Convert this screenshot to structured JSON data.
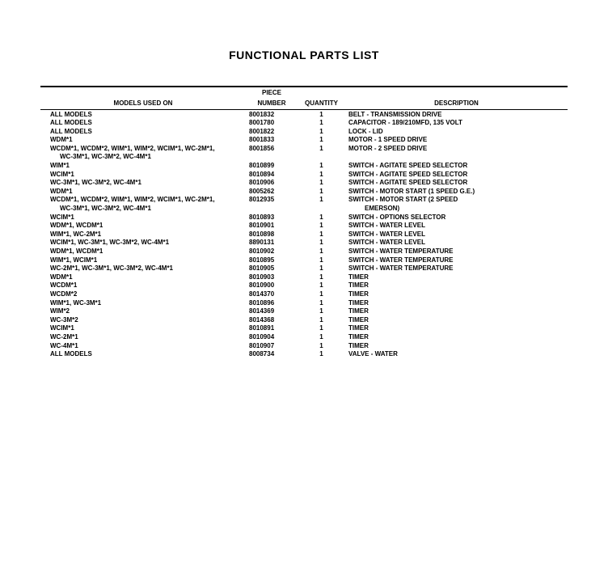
{
  "title": "FUNCTIONAL PARTS LIST",
  "columns": {
    "models": "MODELS USED ON",
    "piece_top": "PIECE",
    "piece_bot": "NUMBER",
    "qty": "QUANTITY",
    "desc": "DESCRIPTION"
  },
  "rows": [
    {
      "models": "ALL MODELS",
      "piece": "8001832",
      "qty": "1",
      "desc": "BELT - TRANSMISSION DRIVE"
    },
    {
      "models": "ALL MODELS",
      "piece": "8001780",
      "qty": "1",
      "desc": "CAPACITOR - 189/210MFD, 135 VOLT"
    },
    {
      "models": "ALL MODELS",
      "piece": "8001822",
      "qty": "1",
      "desc": "LOCK - LID"
    },
    {
      "models": "WDM*1",
      "piece": "8001833",
      "qty": "1",
      "desc": "MOTOR - 1 SPEED DRIVE"
    },
    {
      "models": "WCDM*1, WCDM*2, WIM*1, WIM*2, WCIM*1, WC-2M*1,",
      "piece": "8001856",
      "qty": "1",
      "desc": "MOTOR - 2 SPEED DRIVE"
    },
    {
      "models": "WC-3M*1, WC-3M*2, WC-4M*1",
      "indent": true,
      "piece": "",
      "qty": "",
      "desc": ""
    },
    {
      "models": "WIM*1",
      "piece": "8010899",
      "qty": "1",
      "desc": "SWITCH - AGITATE SPEED SELECTOR"
    },
    {
      "models": "WCIM*1",
      "piece": "8010894",
      "qty": "1",
      "desc": "SWITCH - AGITATE SPEED SELECTOR"
    },
    {
      "models": "WC-3M*1, WC-3M*2, WC-4M*1",
      "piece": "8010906",
      "qty": "1",
      "desc": "SWITCH - AGITATE SPEED SELECTOR"
    },
    {
      "models": "WDM*1",
      "piece": "8005262",
      "qty": "1",
      "desc": "SWITCH - MOTOR START (1 SPEED G.E.)"
    },
    {
      "models": "WCDM*1, WCDM*2, WIM*1, WIM*2, WCIM*1, WC-2M*1,",
      "piece": "8012935",
      "qty": "1",
      "desc": "SWITCH - MOTOR START (2 SPEED"
    },
    {
      "models": "WC-3M*1, WC-3M*2, WC-4M*1",
      "indent": true,
      "piece": "",
      "qty": "",
      "desc": "EMERSON)",
      "descIndent": true
    },
    {
      "models": "WCIM*1",
      "piece": "8010893",
      "qty": "1",
      "desc": "SWITCH - OPTIONS SELECTOR"
    },
    {
      "models": "WDM*1, WCDM*1",
      "piece": "8010901",
      "qty": "1",
      "desc": "SWITCH - WATER LEVEL"
    },
    {
      "models": "WIM*1, WC-2M*1",
      "piece": "8010898",
      "qty": "1",
      "desc": "SWITCH - WATER LEVEL"
    },
    {
      "models": "WCIM*1, WC-3M*1, WC-3M*2, WC-4M*1",
      "piece": "8890131",
      "qty": "1",
      "desc": "SWITCH - WATER LEVEL"
    },
    {
      "models": "WDM*1, WCDM*1",
      "piece": "8010902",
      "qty": "1",
      "desc": "SWITCH - WATER TEMPERATURE"
    },
    {
      "models": "WIM*1, WCIM*1",
      "piece": "8010895",
      "qty": "1",
      "desc": "SWITCH - WATER TEMPERATURE"
    },
    {
      "models": "WC-2M*1, WC-3M*1, WC-3M*2, WC-4M*1",
      "piece": "8010905",
      "qty": "1",
      "desc": "SWITCH - WATER TEMPERATURE"
    },
    {
      "models": "WDM*1",
      "piece": "8010903",
      "qty": "1",
      "desc": "TIMER"
    },
    {
      "models": "WCDM*1",
      "piece": "8010900",
      "qty": "1",
      "desc": "TIMER"
    },
    {
      "models": "WCDM*2",
      "piece": "8014370",
      "qty": "1",
      "desc": "TIMER"
    },
    {
      "models": "WIM*1, WC-3M*1",
      "piece": "8010896",
      "qty": "1",
      "desc": "TIMER"
    },
    {
      "models": "WIM*2",
      "piece": "8014369",
      "qty": "1",
      "desc": "TIMER"
    },
    {
      "models": "WC-3M*2",
      "piece": "8014368",
      "qty": "1",
      "desc": "TIMER"
    },
    {
      "models": "WCIM*1",
      "piece": "8010891",
      "qty": "1",
      "desc": "TIMER"
    },
    {
      "models": "WC-2M*1",
      "piece": "8010904",
      "qty": "1",
      "desc": "TIMER"
    },
    {
      "models": "WC-4M*1",
      "piece": "8010907",
      "qty": "1",
      "desc": "TIMER"
    },
    {
      "models": "ALL MODELS",
      "piece": "8008734",
      "qty": "1",
      "desc": "VALVE - WATER"
    }
  ]
}
